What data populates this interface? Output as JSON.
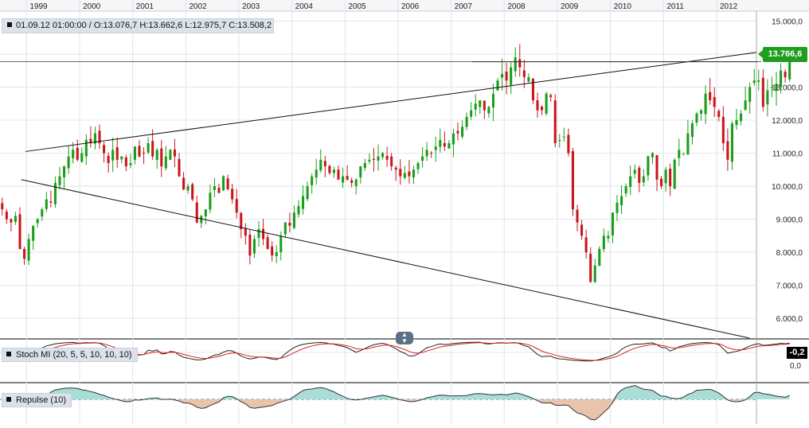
{
  "ohlc_info": "01.09.12 01:00:00 / O:13.076,7  H:13.662,6  L:12.975,7  C:13.508,2",
  "chart_data": {
    "type": "candlestick",
    "instrument_period": "monthly",
    "x_start": 1998.5,
    "x_end": 2012.75,
    "x_tick_labels": [
      "1999",
      "2000",
      "2001",
      "2002",
      "2003",
      "2004",
      "2005",
      "2006",
      "2007",
      "2008",
      "2009",
      "2010",
      "2011",
      "2012"
    ],
    "y_range": [
      5400,
      15300
    ],
    "y_tick_values": [
      6000,
      7000,
      8000,
      9000,
      10000,
      11000,
      12000,
      13000,
      14000,
      15000
    ],
    "y_tick_labels": [
      "6.000,0",
      "7.000,0",
      "8.000,0",
      "9.000,0",
      "10.000,0",
      "11.000,0",
      "12.000,0",
      "13.000,0",
      "14.000,0",
      "15.000,0"
    ],
    "last_price_label": "13.766,6",
    "last_price_value": 13766.6,
    "horizontal_line_value": 13766.6,
    "up_color": "#1a9e1a",
    "down_color": "#c8161d",
    "closes": [
      9300,
      9000,
      8900,
      9100,
      8100,
      7800,
      8400,
      8800,
      9000,
      9300,
      9600,
      9500,
      10100,
      10300,
      10600,
      10900,
      11100,
      10800,
      11000,
      11400,
      11300,
      11600,
      11300,
      11000,
      10700,
      11100,
      10800,
      10900,
      10600,
      10700,
      11200,
      10900,
      11000,
      11300,
      10900,
      11100,
      10600,
      10900,
      11100,
      10900,
      10300,
      9900,
      10000,
      9600,
      8900,
      9100,
      9300,
      9800,
      10000,
      9800,
      10300,
      9900,
      9600,
      9200,
      8700,
      8500,
      7900,
      8400,
      8700,
      8400,
      8100,
      7900,
      8000,
      8500,
      8900,
      8800,
      9200,
      9400,
      9700,
      10000,
      10300,
      10500,
      10800,
      10600,
      10400,
      10500,
      10200,
      10300,
      10200,
      10100,
      10200,
      10600,
      10700,
      10800,
      10800,
      10900,
      11000,
      10800,
      10600,
      10500,
      10300,
      10400,
      10300,
      10500,
      10700,
      10900,
      11100,
      11000,
      11200,
      11400,
      11200,
      11300,
      11600,
      11600,
      11800,
      12100,
      12300,
      12500,
      12600,
      12300,
      12400,
      12800,
      13200,
      13400,
      13200,
      13600,
      13900,
      13600,
      13300,
      13300,
      12600,
      12300,
      12300,
      12800,
      12700,
      11300,
      11400,
      11500,
      11000,
      9300,
      8900,
      8500,
      8000,
      7100,
      7600,
      8100,
      8500,
      8500,
      9200,
      9500,
      9700,
      10000,
      10300,
      10500,
      10100,
      10300,
      10900,
      11000,
      10200,
      10000,
      10500,
      10000,
      10800,
      11100,
      11000,
      11600,
      11900,
      12200,
      12300,
      12800,
      12600,
      12400,
      12100,
      11300,
      10800,
      11900,
      12000,
      12200,
      12600,
      13000,
      13200,
      13200,
      12400,
      12900,
      13000,
      13100,
      13500,
      13300,
      13766.6
    ],
    "trend_lines": [
      {
        "from": [
          1998.98,
          11050
        ],
        "to": [
          2012.75,
          14050
        ]
      },
      {
        "from": [
          1998.9,
          10200
        ],
        "to": [
          2012.62,
          5400
        ]
      },
      {
        "from": [
          2007.4,
          13766.6
        ],
        "to": [
          2012.75,
          13766.6
        ]
      }
    ],
    "stoch_mi": {
      "label": "Stoch MI (20, 5, 5, 10, 10, 10)",
      "value_label": "-0,2",
      "zero_label": "0,0",
      "main_color": "#222222",
      "signal_color": "#e02020"
    },
    "repulse": {
      "label": "Repulse (10)",
      "positive_fill": "#a9ddd6",
      "negative_fill": "#e8c4ad",
      "zero_line_color": "#2a8f8f"
    }
  }
}
